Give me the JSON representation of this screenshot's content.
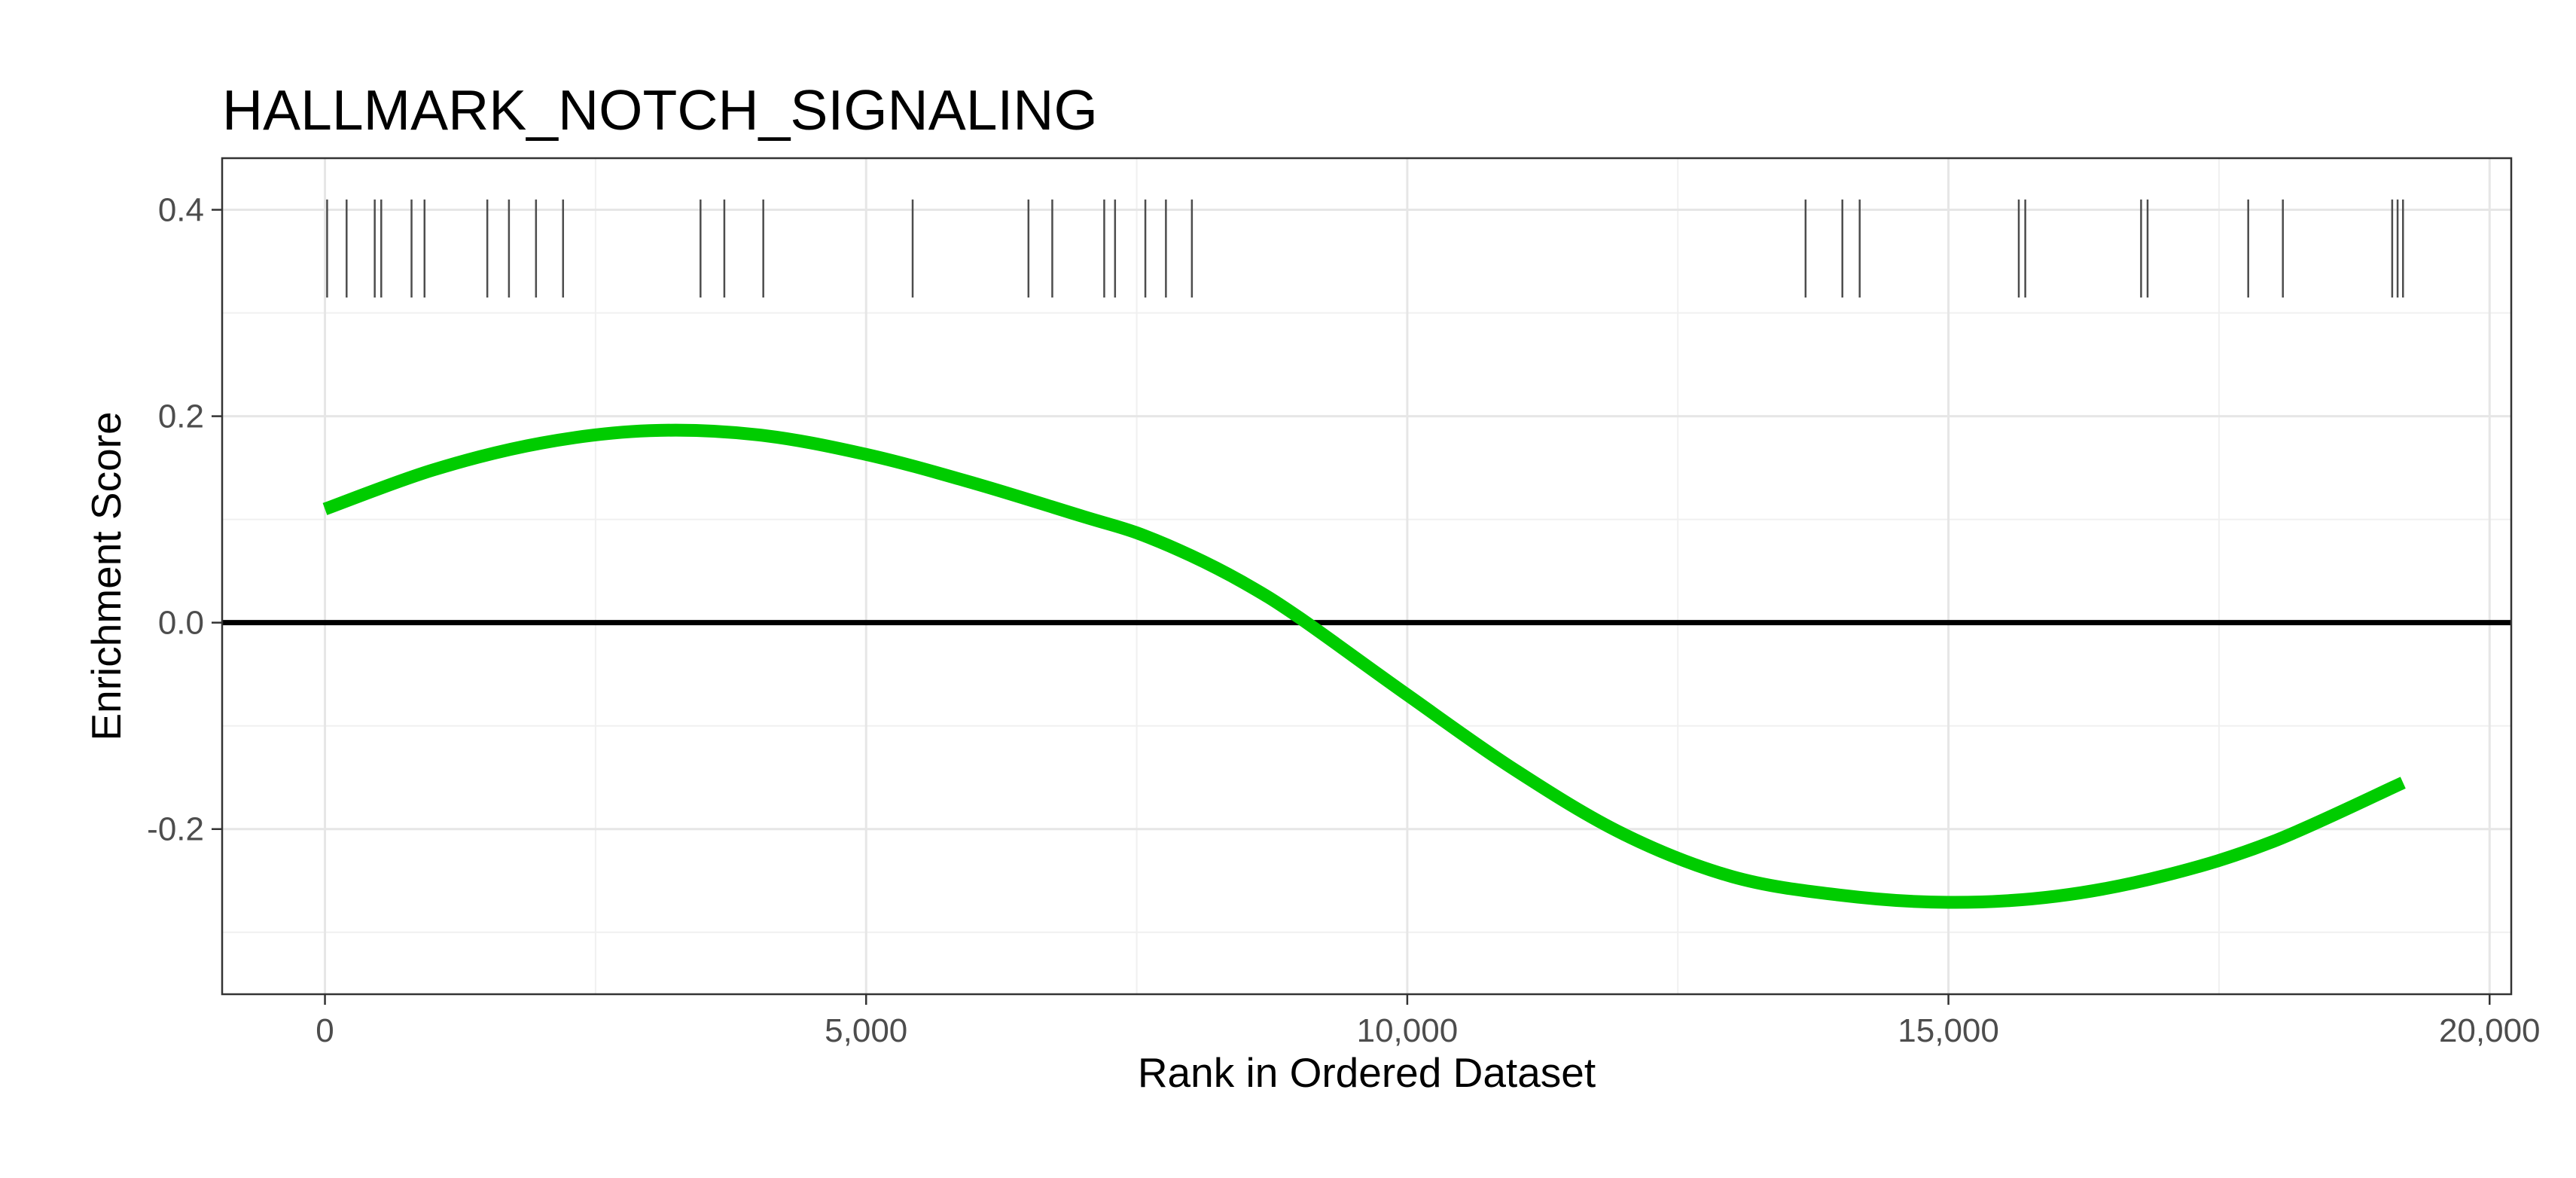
{
  "chart_data": {
    "type": "line",
    "title": "HALLMARK_NOTCH_SIGNALING",
    "xlabel": "Rank in Ordered Dataset",
    "ylabel": "Enrichment Score",
    "xlim": [
      -950,
      20200
    ],
    "ylim": [
      -0.36,
      0.45
    ],
    "x_ticks": [
      0,
      5000,
      10000,
      15000,
      20000
    ],
    "x_tick_labels": [
      "0",
      "5,000",
      "10,000",
      "15,000",
      "20,000"
    ],
    "y_ticks": [
      -0.2,
      0.0,
      0.2,
      0.4
    ],
    "y_tick_labels": [
      "-0.2",
      "0.0",
      "0.2",
      "0.4"
    ],
    "grid": true,
    "legend": "none",
    "series": [
      {
        "color": "#00cc00",
        "x": [
          0,
          1000,
          2000,
          3000,
          4000,
          5000,
          6000,
          7000,
          7500,
          8000,
          8500,
          9000,
          10000,
          11000,
          12000,
          13000,
          14000,
          15000,
          16000,
          17000,
          18000,
          19200
        ],
        "y": [
          0.11,
          0.148,
          0.174,
          0.186,
          0.182,
          0.163,
          0.135,
          0.103,
          0.087,
          0.065,
          0.038,
          0.005,
          -0.07,
          -0.143,
          -0.205,
          -0.246,
          -0.264,
          -0.271,
          -0.265,
          -0.245,
          -0.212,
          -0.155
        ]
      }
    ],
    "reference_line": {
      "y": 0,
      "color": "#000000"
    },
    "gene_hits": {
      "y_range": [
        0.315,
        0.41
      ],
      "color": "#4d4d4d",
      "positions": [
        20,
        200,
        460,
        520,
        800,
        920,
        1500,
        1700,
        1950,
        2200,
        3470,
        3690,
        4050,
        5430,
        6500,
        6720,
        7200,
        7300,
        7580,
        7770,
        8010,
        13680,
        14020,
        14180,
        15650,
        15710,
        16780,
        16840,
        17770,
        18090,
        19100,
        19150,
        19200
      ]
    }
  }
}
